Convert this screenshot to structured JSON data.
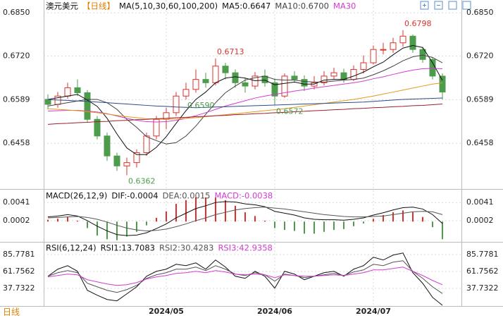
{
  "chart_data": [
    {
      "type": "candlestick",
      "title": "澳元美元",
      "subtitle": "【日线】",
      "label": "MA(5,10,30,60,100,200)",
      "categories": [
        null,
        null,
        null,
        null,
        null,
        null,
        null,
        null,
        null,
        null,
        null,
        null,
        "2024/05",
        null,
        null,
        null,
        null,
        null,
        null,
        null,
        null,
        null,
        null,
        "2024/06",
        null,
        null,
        null,
        null,
        null,
        null,
        null,
        null,
        null,
        "2024/07",
        null,
        null,
        null,
        null,
        null,
        null,
        null
      ],
      "open": [
        0.659,
        0.6575,
        0.66,
        0.6625,
        0.661,
        0.653,
        0.648,
        0.642,
        0.639,
        0.64,
        0.643,
        0.648,
        0.653,
        0.655,
        0.66,
        0.662,
        0.665,
        0.664,
        0.669,
        0.667,
        0.664,
        0.663,
        0.666,
        0.664,
        0.66,
        0.666,
        0.665,
        0.663,
        0.664,
        0.666,
        0.667,
        0.665,
        0.668,
        0.67,
        0.674,
        0.674,
        0.676,
        0.678,
        0.674,
        0.671,
        0.666
      ],
      "high": [
        0.6605,
        0.6612,
        0.664,
        0.665,
        0.6618,
        0.654,
        0.649,
        0.643,
        0.6415,
        0.644,
        0.649,
        0.654,
        0.6565,
        0.6612,
        0.664,
        0.668,
        0.667,
        0.6713,
        0.67,
        0.668,
        0.6655,
        0.6672,
        0.668,
        0.6652,
        0.6668,
        0.6675,
        0.6662,
        0.666,
        0.6675,
        0.6685,
        0.6682,
        0.6692,
        0.6722,
        0.6752,
        0.676,
        0.6775,
        0.6798,
        0.6785,
        0.6748,
        0.6715,
        0.6668
      ],
      "low": [
        0.656,
        0.6565,
        0.6592,
        0.66,
        0.652,
        0.647,
        0.6405,
        0.6375,
        0.6362,
        0.6385,
        0.642,
        0.647,
        0.65,
        0.654,
        0.659,
        0.661,
        0.6625,
        0.6632,
        0.665,
        0.6625,
        0.661,
        0.662,
        0.6628,
        0.6572,
        0.6595,
        0.664,
        0.6615,
        0.662,
        0.6632,
        0.665,
        0.664,
        0.6645,
        0.6668,
        0.6695,
        0.6725,
        0.673,
        0.6748,
        0.673,
        0.67,
        0.665,
        0.659
      ],
      "close": [
        0.6575,
        0.66,
        0.6625,
        0.661,
        0.653,
        0.648,
        0.642,
        0.639,
        0.64,
        0.643,
        0.648,
        0.653,
        0.655,
        0.66,
        0.662,
        0.665,
        0.664,
        0.669,
        0.667,
        0.664,
        0.663,
        0.666,
        0.664,
        0.66,
        0.666,
        0.665,
        0.663,
        0.664,
        0.666,
        0.667,
        0.665,
        0.668,
        0.67,
        0.674,
        0.674,
        0.676,
        0.678,
        0.674,
        0.671,
        0.666,
        0.6612
      ],
      "up_color": "#e0302a",
      "down_color": "#4c9c4c",
      "series": [
        {
          "name": "MA5:0.6647",
          "color": "#111111",
          "values": [
            0.659,
            0.6595,
            0.66,
            0.6605,
            0.6588,
            0.6569,
            0.6533,
            0.6486,
            0.6444,
            0.6424,
            0.6424,
            0.6446,
            0.6478,
            0.6518,
            0.6556,
            0.659,
            0.6612,
            0.664,
            0.6654,
            0.6658,
            0.6654,
            0.6646,
            0.6648,
            0.6634,
            0.6638,
            0.6642,
            0.6636,
            0.6636,
            0.6648,
            0.665,
            0.665,
            0.666,
            0.6672,
            0.6688,
            0.6702,
            0.6724,
            0.6744,
            0.6752,
            0.6746,
            0.67,
            0.6647
          ]
        },
        {
          "name": "MA10:0.6700",
          "color": "#444444",
          "values": [
            0.657,
            0.6575,
            0.658,
            0.6585,
            0.659,
            0.659,
            0.658,
            0.656,
            0.653,
            0.6506,
            0.6478,
            0.6466,
            0.6456,
            0.646,
            0.648,
            0.651,
            0.6545,
            0.658,
            0.661,
            0.663,
            0.6648,
            0.6655,
            0.666,
            0.665,
            0.6648,
            0.6648,
            0.6644,
            0.6642,
            0.6642,
            0.6645,
            0.6648,
            0.665,
            0.6654,
            0.6664,
            0.6676,
            0.669,
            0.6706,
            0.6718,
            0.6723,
            0.6716,
            0.67
          ]
        },
        {
          "name": "MA30",
          "color": "#d23cd2",
          "values": [
            0.6555,
            0.6556,
            0.6557,
            0.6557,
            0.6555,
            0.6552,
            0.6547,
            0.654,
            0.6533,
            0.6527,
            0.6523,
            0.6522,
            0.6523,
            0.6527,
            0.6533,
            0.6541,
            0.655,
            0.656,
            0.657,
            0.6578,
            0.6586,
            0.6594,
            0.66,
            0.6605,
            0.661,
            0.6615,
            0.6619,
            0.6624,
            0.6628,
            0.6632,
            0.6636,
            0.664,
            0.6645,
            0.6652,
            0.6658,
            0.6665,
            0.6672,
            0.6678,
            0.6682,
            0.6683,
            0.6682
          ]
        },
        {
          "color": "#e39a1c",
          "values": [
            0.6562,
            0.656,
            0.6558,
            0.6556,
            0.6553,
            0.655,
            0.6546,
            0.6542,
            0.6538,
            0.6535,
            0.6532,
            0.6531,
            0.653,
            0.6531,
            0.6533,
            0.6535,
            0.6538,
            0.6541,
            0.6544,
            0.6547,
            0.655,
            0.6553,
            0.6556,
            0.6559,
            0.6562,
            0.6566,
            0.657,
            0.6574,
            0.6578,
            0.6582,
            0.6586,
            0.659,
            0.6595,
            0.66,
            0.6606,
            0.6612,
            0.6618,
            0.6624,
            0.663,
            0.6636,
            0.664
          ]
        },
        {
          "color": "#2c4a8c",
          "values": [
            0.659,
            0.6588,
            0.6587,
            0.6585,
            0.6584,
            0.6582,
            0.658,
            0.6578,
            0.6576,
            0.6574,
            0.6572,
            0.657,
            0.6569,
            0.6567,
            0.6566,
            0.6565,
            0.6566,
            0.6567,
            0.6568,
            0.6569,
            0.657,
            0.6571,
            0.6572,
            0.6573,
            0.6574,
            0.6575,
            0.6576,
            0.6577,
            0.6578,
            0.6579,
            0.658,
            0.6581,
            0.6582,
            0.6584,
            0.6586,
            0.6588,
            0.659,
            0.6591,
            0.6592,
            0.6593,
            0.6594
          ]
        },
        {
          "color": "#9c1f2c",
          "values": [
            0.6515,
            0.6517,
            0.6518,
            0.652,
            0.6521,
            0.6523,
            0.6524,
            0.6526,
            0.6527,
            0.6529,
            0.653,
            0.6532,
            0.6533,
            0.6535,
            0.6536,
            0.6538,
            0.6539,
            0.6541,
            0.6542,
            0.6544,
            0.6545,
            0.6547,
            0.6548,
            0.655,
            0.6551,
            0.6553,
            0.6554,
            0.6556,
            0.6557,
            0.6559,
            0.656,
            0.6562,
            0.6563,
            0.6565,
            0.6566,
            0.6568,
            0.6569,
            0.6571,
            0.6572,
            0.6574,
            0.6576
          ]
        }
      ],
      "annotations": [
        {
          "label": "0.6798",
          "value": 0.6798
        },
        {
          "label": "0.6713",
          "value": 0.6713
        },
        {
          "label": "0.6572",
          "value": 0.6572
        },
        {
          "label": "0.6362",
          "value": 0.6362
        },
        {
          "label": "0.6590",
          "value": 0.659
        }
      ],
      "ylim": [
        0.6325,
        0.6859
      ],
      "yticks": [
        {
          "value": 0.685,
          "label": "0.6850"
        },
        {
          "value": 0.672,
          "label": "0.6720"
        },
        0.6589,
        0.6458
      ],
      "grid": true
    },
    {
      "type": "macd",
      "title": "MACD(26,12,9)",
      "series": [
        {
          "name": "DIF:-0.0004",
          "color": "#111111",
          "values": [
            0.001,
            0.0012,
            0.0015,
            0.0012,
            0.0002,
            -0.001,
            -0.002,
            -0.0028,
            -0.003,
            -0.0029,
            -0.0024,
            -0.0015,
            -0.0005,
            0.0008,
            0.0018,
            0.0028,
            0.0034,
            0.0041,
            0.0043,
            0.0042,
            0.0038,
            0.0036,
            0.0032,
            0.0022,
            0.0018,
            0.0014,
            0.0008,
            0.0005,
            0.0004,
            0.0004,
            0.0003,
            0.0005,
            0.0008,
            0.0014,
            0.0019,
            0.0025,
            0.003,
            0.0031,
            0.0027,
            0.0015,
            -0.0004
          ]
        },
        {
          "name": "DEA:0.0015",
          "color": "#555555",
          "values": [
            0.0008,
            0.0009,
            0.001,
            0.0011,
            0.0009,
            0.0005,
            -0.0001,
            -0.0008,
            -0.0014,
            -0.0018,
            -0.002,
            -0.0019,
            -0.0016,
            -0.0011,
            -0.0005,
            0.0002,
            0.0008,
            0.0015,
            0.002,
            0.0025,
            0.0028,
            0.003,
            0.0031,
            0.0029,
            0.0027,
            0.0024,
            0.0021,
            0.0018,
            0.0015,
            0.0013,
            0.0011,
            0.001,
            0.001,
            0.0011,
            0.0012,
            0.0015,
            0.0018,
            0.0021,
            0.0022,
            0.0021,
            0.0015
          ]
        }
      ],
      "histogram": {
        "name": "MACD:-0.0038",
        "color": "#d23cd2",
        "up_color": "#e0302a",
        "down_color": "#4c9c4c",
        "values": [
          0.0004,
          0.0006,
          0.001,
          0.0002,
          -0.0014,
          -0.003,
          -0.0038,
          -0.004,
          -0.0032,
          -0.0022,
          -0.0008,
          0.0008,
          0.0022,
          0.0038,
          0.0046,
          0.0052,
          0.0052,
          0.0052,
          0.0046,
          0.0034,
          0.002,
          0.0012,
          0.0002,
          -0.0014,
          -0.0018,
          -0.002,
          -0.0026,
          -0.0026,
          -0.0022,
          -0.0018,
          -0.0016,
          -0.001,
          -0.0004,
          0.0006,
          0.0014,
          0.002,
          0.0024,
          0.002,
          0.001,
          -0.0012,
          -0.0038
        ]
      },
      "ylim": [
        -0.0042,
        0.0064
      ],
      "yticks": [
        0.0041,
        0.0002
      ],
      "grid": true
    },
    {
      "type": "line",
      "title": "RSI(6,12,24)",
      "series": [
        {
          "name": "RSI1:13.7083",
          "color": "#111111",
          "values": [
            55,
            65,
            70,
            62,
            35,
            28,
            22,
            20,
            30,
            40,
            55,
            62,
            65,
            72,
            70,
            74,
            65,
            78,
            68,
            55,
            52,
            62,
            55,
            38,
            62,
            58,
            50,
            55,
            60,
            62,
            55,
            65,
            70,
            82,
            78,
            85,
            88,
            60,
            45,
            25,
            13.7083
          ]
        },
        {
          "name": "RSI2:30.4283",
          "color": "#555555",
          "values": [
            55,
            60,
            63,
            60,
            45,
            40,
            35,
            32,
            36,
            42,
            52,
            57,
            60,
            65,
            65,
            68,
            63,
            70,
            65,
            58,
            56,
            60,
            57,
            48,
            58,
            56,
            53,
            55,
            57,
            59,
            56,
            61,
            64,
            72,
            70,
            75,
            77,
            62,
            52,
            40,
            30.4283
          ]
        },
        {
          "name": "RSI3:42.9358",
          "color": "#d23cd2",
          "values": [
            54,
            56,
            58,
            57,
            50,
            47,
            44,
            42,
            43,
            46,
            51,
            54,
            56,
            59,
            60,
            62,
            60,
            63,
            61,
            58,
            57,
            58,
            57,
            53,
            57,
            56,
            55,
            55,
            56,
            57,
            56,
            58,
            60,
            64,
            64,
            66,
            68,
            62,
            56,
            49,
            42.9358
          ]
        }
      ],
      "ylim": [
        12.7,
        100.8
      ],
      "yticks": [
        85.7781,
        61.7562,
        37.7322
      ],
      "grid": true
    }
  ],
  "period_tab": "日线"
}
